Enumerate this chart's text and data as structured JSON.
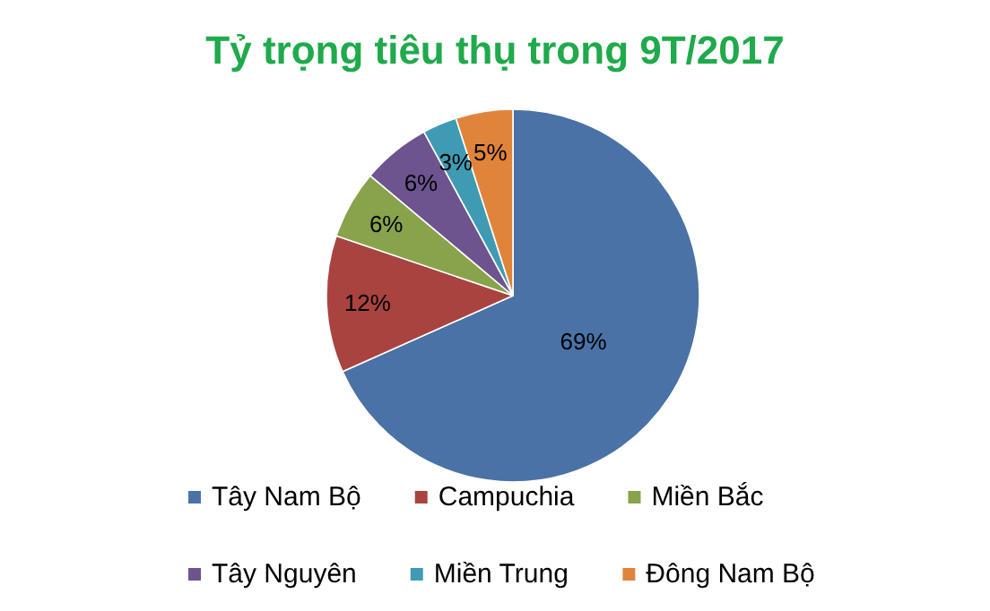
{
  "chart_data": {
    "type": "pie",
    "title": "Tỷ trọng tiêu thụ trong 9T/2017",
    "categories": [
      "Tây Nam Bộ",
      "Campuchia",
      "Miền Bắc",
      "Tây Nguyên",
      "Miền Trung",
      "Đông Nam Bộ"
    ],
    "values": [
      69,
      12,
      6,
      6,
      3,
      5
    ],
    "colors": [
      "#4a72a6",
      "#a9433f",
      "#88a34b",
      "#6d548f",
      "#3f9bb3",
      "#e0843c"
    ],
    "value_labels": [
      "69%",
      "12%",
      "6%",
      "6%",
      "3%",
      "5%"
    ],
    "legend": "bottom"
  }
}
